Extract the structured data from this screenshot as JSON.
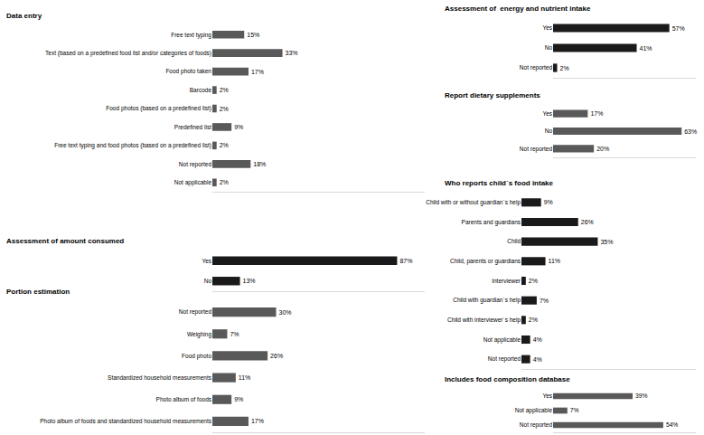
{
  "chart_data": [
    {
      "type": "bar",
      "title": "Data entry",
      "orientation": "horizontal",
      "data_labels": true,
      "tick_labels": "y",
      "color": "#595959",
      "categories": [
        "Free text typing",
        "Text (based on a predefined food list and/or categories of foods)",
        "Food photo taken",
        "Barcode",
        "Food photos (based on a predefined list)",
        "Predefined list",
        "Free text typing and food photos (based on a predefined list)",
        "Not reported",
        "Not applicable"
      ],
      "values": [
        15,
        33,
        17,
        2,
        2,
        9,
        2,
        18,
        2
      ],
      "value_labels": [
        "15%",
        "33%",
        "17%",
        "2%",
        "2%",
        "9%",
        "2%",
        "18%",
        "2%"
      ],
      "xlim": [
        0,
        100
      ]
    },
    {
      "type": "bar",
      "title": "Assessment of amount consumed",
      "orientation": "horizontal",
      "data_labels": true,
      "tick_labels": "y",
      "color": "#1a1a1a",
      "categories": [
        "Yes",
        "No"
      ],
      "values": [
        87,
        13
      ],
      "value_labels": [
        "87%",
        "13%"
      ],
      "xlim": [
        0,
        100
      ]
    },
    {
      "type": "bar",
      "title": "Portion estimation",
      "orientation": "horizontal",
      "data_labels": true,
      "tick_labels": "y",
      "color": "#595959",
      "categories": [
        "Not reported",
        "Weighing",
        "Food photo",
        "Standardized household measurements",
        "Photo album of foods",
        "Photo album of foods and standardized household measurements"
      ],
      "values": [
        30,
        7,
        26,
        11,
        9,
        17
      ],
      "value_labels": [
        "30%",
        "7%",
        "26%",
        "11%",
        "9%",
        "17%"
      ],
      "xlim": [
        0,
        100
      ]
    },
    {
      "type": "bar",
      "title": "Assessment of  energy and nutrient intake",
      "orientation": "horizontal",
      "data_labels": true,
      "tick_labels": "y",
      "color": "#1a1a1a",
      "categories": [
        "Yes",
        "No",
        "Not reported"
      ],
      "values": [
        57,
        41,
        2
      ],
      "value_labels": [
        "57%",
        "41%",
        "2%"
      ],
      "xlim": [
        0,
        70
      ]
    },
    {
      "type": "bar",
      "title": "Report dietary supplements",
      "orientation": "horizontal",
      "data_labels": true,
      "tick_labels": "y",
      "color": "#595959",
      "categories": [
        "Yes",
        "No",
        "Not reported"
      ],
      "values": [
        17,
        63,
        20
      ],
      "value_labels": [
        "17%",
        "63%",
        "20%"
      ],
      "xlim": [
        0,
        70
      ]
    },
    {
      "type": "bar",
      "title": "Who reports child´s food intake",
      "orientation": "horizontal",
      "data_labels": true,
      "tick_labels": "y",
      "color": "#1a1a1a",
      "categories": [
        "Child with or without guardian´s help",
        "Parents and guardians",
        "Child",
        "Child, parents or guardians",
        "Interviewer",
        "Child with guardian´s help",
        "Child with interviewer´s help",
        "Not applicable",
        "Not reported"
      ],
      "values": [
        9,
        26,
        35,
        11,
        2,
        7,
        2,
        4,
        4
      ],
      "value_labels": [
        "9%",
        "26%",
        "35%",
        "11%",
        "2%",
        "7%",
        "2%",
        "4%",
        "4%"
      ],
      "xlim": [
        0,
        80
      ]
    },
    {
      "type": "bar",
      "title": "Includes food composition database",
      "orientation": "horizontal",
      "data_labels": true,
      "tick_labels": "y",
      "color": "#595959",
      "categories": [
        "Yes",
        "Not applicable",
        "Not reported"
      ],
      "values": [
        39,
        7,
        54
      ],
      "value_labels": [
        "39%",
        "7%",
        "54%"
      ],
      "xlim": [
        0,
        70
      ]
    }
  ]
}
